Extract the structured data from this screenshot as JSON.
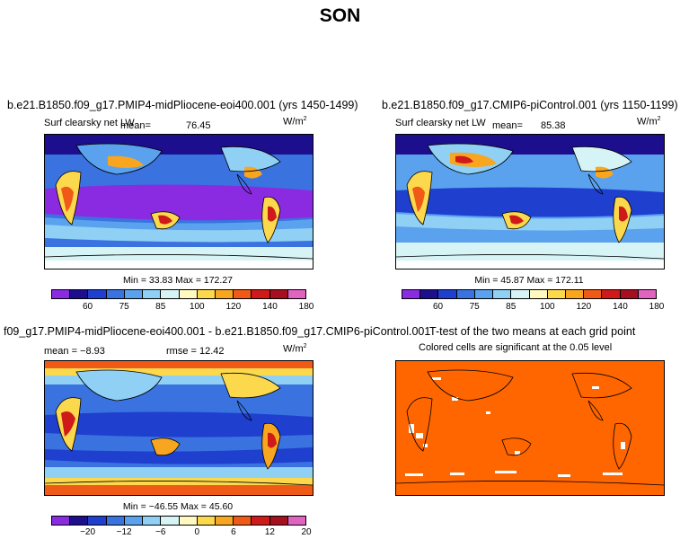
{
  "title": "SON",
  "panels": {
    "top_left": {
      "case": "b.e21.B1850.f09_g17.PMIP4-midPliocene-eoi400.001 (yrs 1450-1499)",
      "variable": "Surf clearsky net LW",
      "mean_label": "mean=",
      "mean_value": "76.45",
      "units": "W/m",
      "units_exp": "2",
      "stats": "Min =  33.83 Max = 172.27"
    },
    "top_right": {
      "case": "b.e21.B1850.f09_g17.CMIP6-piControl.001 (yrs 1150-1199)",
      "variable": "Surf clearsky net LW",
      "mean_label": "mean=",
      "mean_value": "85.38",
      "units": "W/m",
      "units_exp": "2",
      "stats": "Min =  45.87 Max = 172.11"
    },
    "bottom_left": {
      "case": "f09_g17.PMIP4-midPliocene-eoi400.001 - b.e21.B1850.f09_g17.CMIP6-piControl.001",
      "mean_text": "mean = −8.93",
      "rmse_text": "rmse =  12.42",
      "units": "W/m",
      "units_exp": "2",
      "stats": "Min = −46.55 Max =  45.60"
    },
    "bottom_right": {
      "case": "T-test of the two means at each grid point",
      "subtitle": "Colored cells are significant at the 0.05 level"
    }
  },
  "colorbar_abs": {
    "colors": [
      "#8a2be2",
      "#1c0e8c",
      "#1f3fcf",
      "#3a73e0",
      "#5aa2ee",
      "#8fd0f4",
      "#d6f3f5",
      "#fff9c0",
      "#fcd84d",
      "#f8a51f",
      "#ef5a17",
      "#cf1a1a",
      "#a50f1f",
      "#e063c0"
    ],
    "ticks": [
      "60",
      "75",
      "85",
      "100",
      "120",
      "140",
      "180"
    ]
  },
  "colorbar_diff": {
    "colors": [
      "#8a2be2",
      "#1c0e8c",
      "#1f3fcf",
      "#3a73e0",
      "#5aa2ee",
      "#8fd0f4",
      "#d6f3f5",
      "#fff9c0",
      "#fcd84d",
      "#f8a51f",
      "#ef5a17",
      "#cf1a1a",
      "#a50f1f",
      "#e063c0"
    ],
    "ticks": [
      "−20",
      "−12",
      "−6",
      "0",
      "6",
      "12",
      "20"
    ]
  },
  "ttest_color": "#ff6600"
}
